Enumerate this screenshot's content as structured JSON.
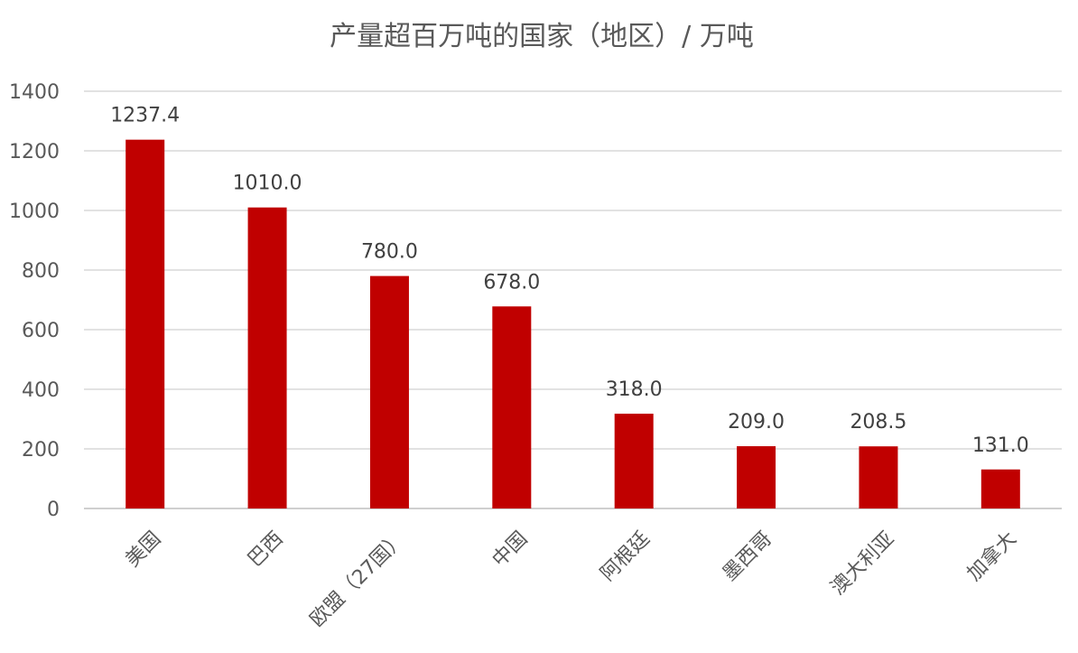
{
  "chart_data": {
    "type": "bar",
    "title": "产量超百万吨的国家（地区）/ 万吨",
    "categories": [
      "美国",
      "巴西",
      "欧盟（27国）",
      "中国",
      "阿根廷",
      "墨西哥",
      "澳大利亚",
      "加拿大"
    ],
    "values": [
      1237.4,
      1010.0,
      780.0,
      678.0,
      318.0,
      209.0,
      208.5,
      131.0
    ],
    "data_labels": [
      "1237.4",
      "1010.0",
      "780.0",
      "678.0",
      "318.0",
      "209.0",
      "208.5",
      "131.0"
    ],
    "ylim": [
      0,
      1400
    ],
    "yticks": [
      0,
      200,
      400,
      600,
      800,
      1000,
      1200,
      1400
    ],
    "grid": true,
    "legend": "none",
    "bar_color": "#C00000"
  }
}
